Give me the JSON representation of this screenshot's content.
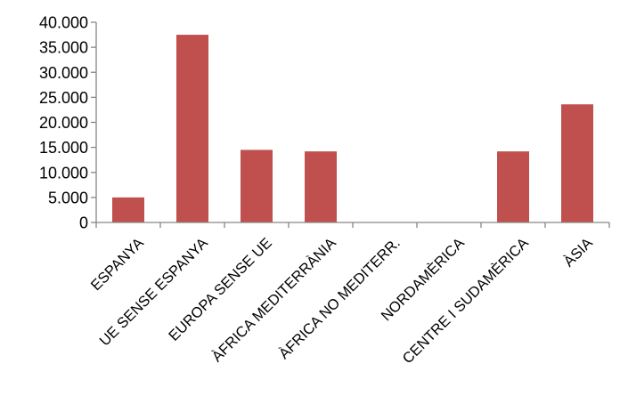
{
  "chart_data": {
    "type": "bar",
    "categories": [
      "ESPANYA",
      "UE SENSE ESPANYA",
      "EUROPA SENSE UE",
      "ÀFRICA MEDITERRÀNIA",
      "ÀFRICA NO MEDITERR.",
      "NORDAMÈRICA",
      "CENTRE I SUDAMÈRICA",
      "ÀSIA"
    ],
    "values": [
      5000,
      37500,
      14500,
      14200,
      0,
      0,
      14200,
      23600
    ],
    "ylim": [
      0,
      40000
    ],
    "yticks": [
      0,
      5000,
      10000,
      15000,
      20000,
      25000,
      30000,
      35000,
      40000
    ],
    "ytick_labels": [
      "0",
      "5.000",
      "10.000",
      "15.000",
      "20.000",
      "25.000",
      "30.000",
      "35.000",
      "40.000"
    ],
    "bar_color": "#c0504d",
    "axis_color": "#868686",
    "grid": false,
    "legend": "none"
  }
}
